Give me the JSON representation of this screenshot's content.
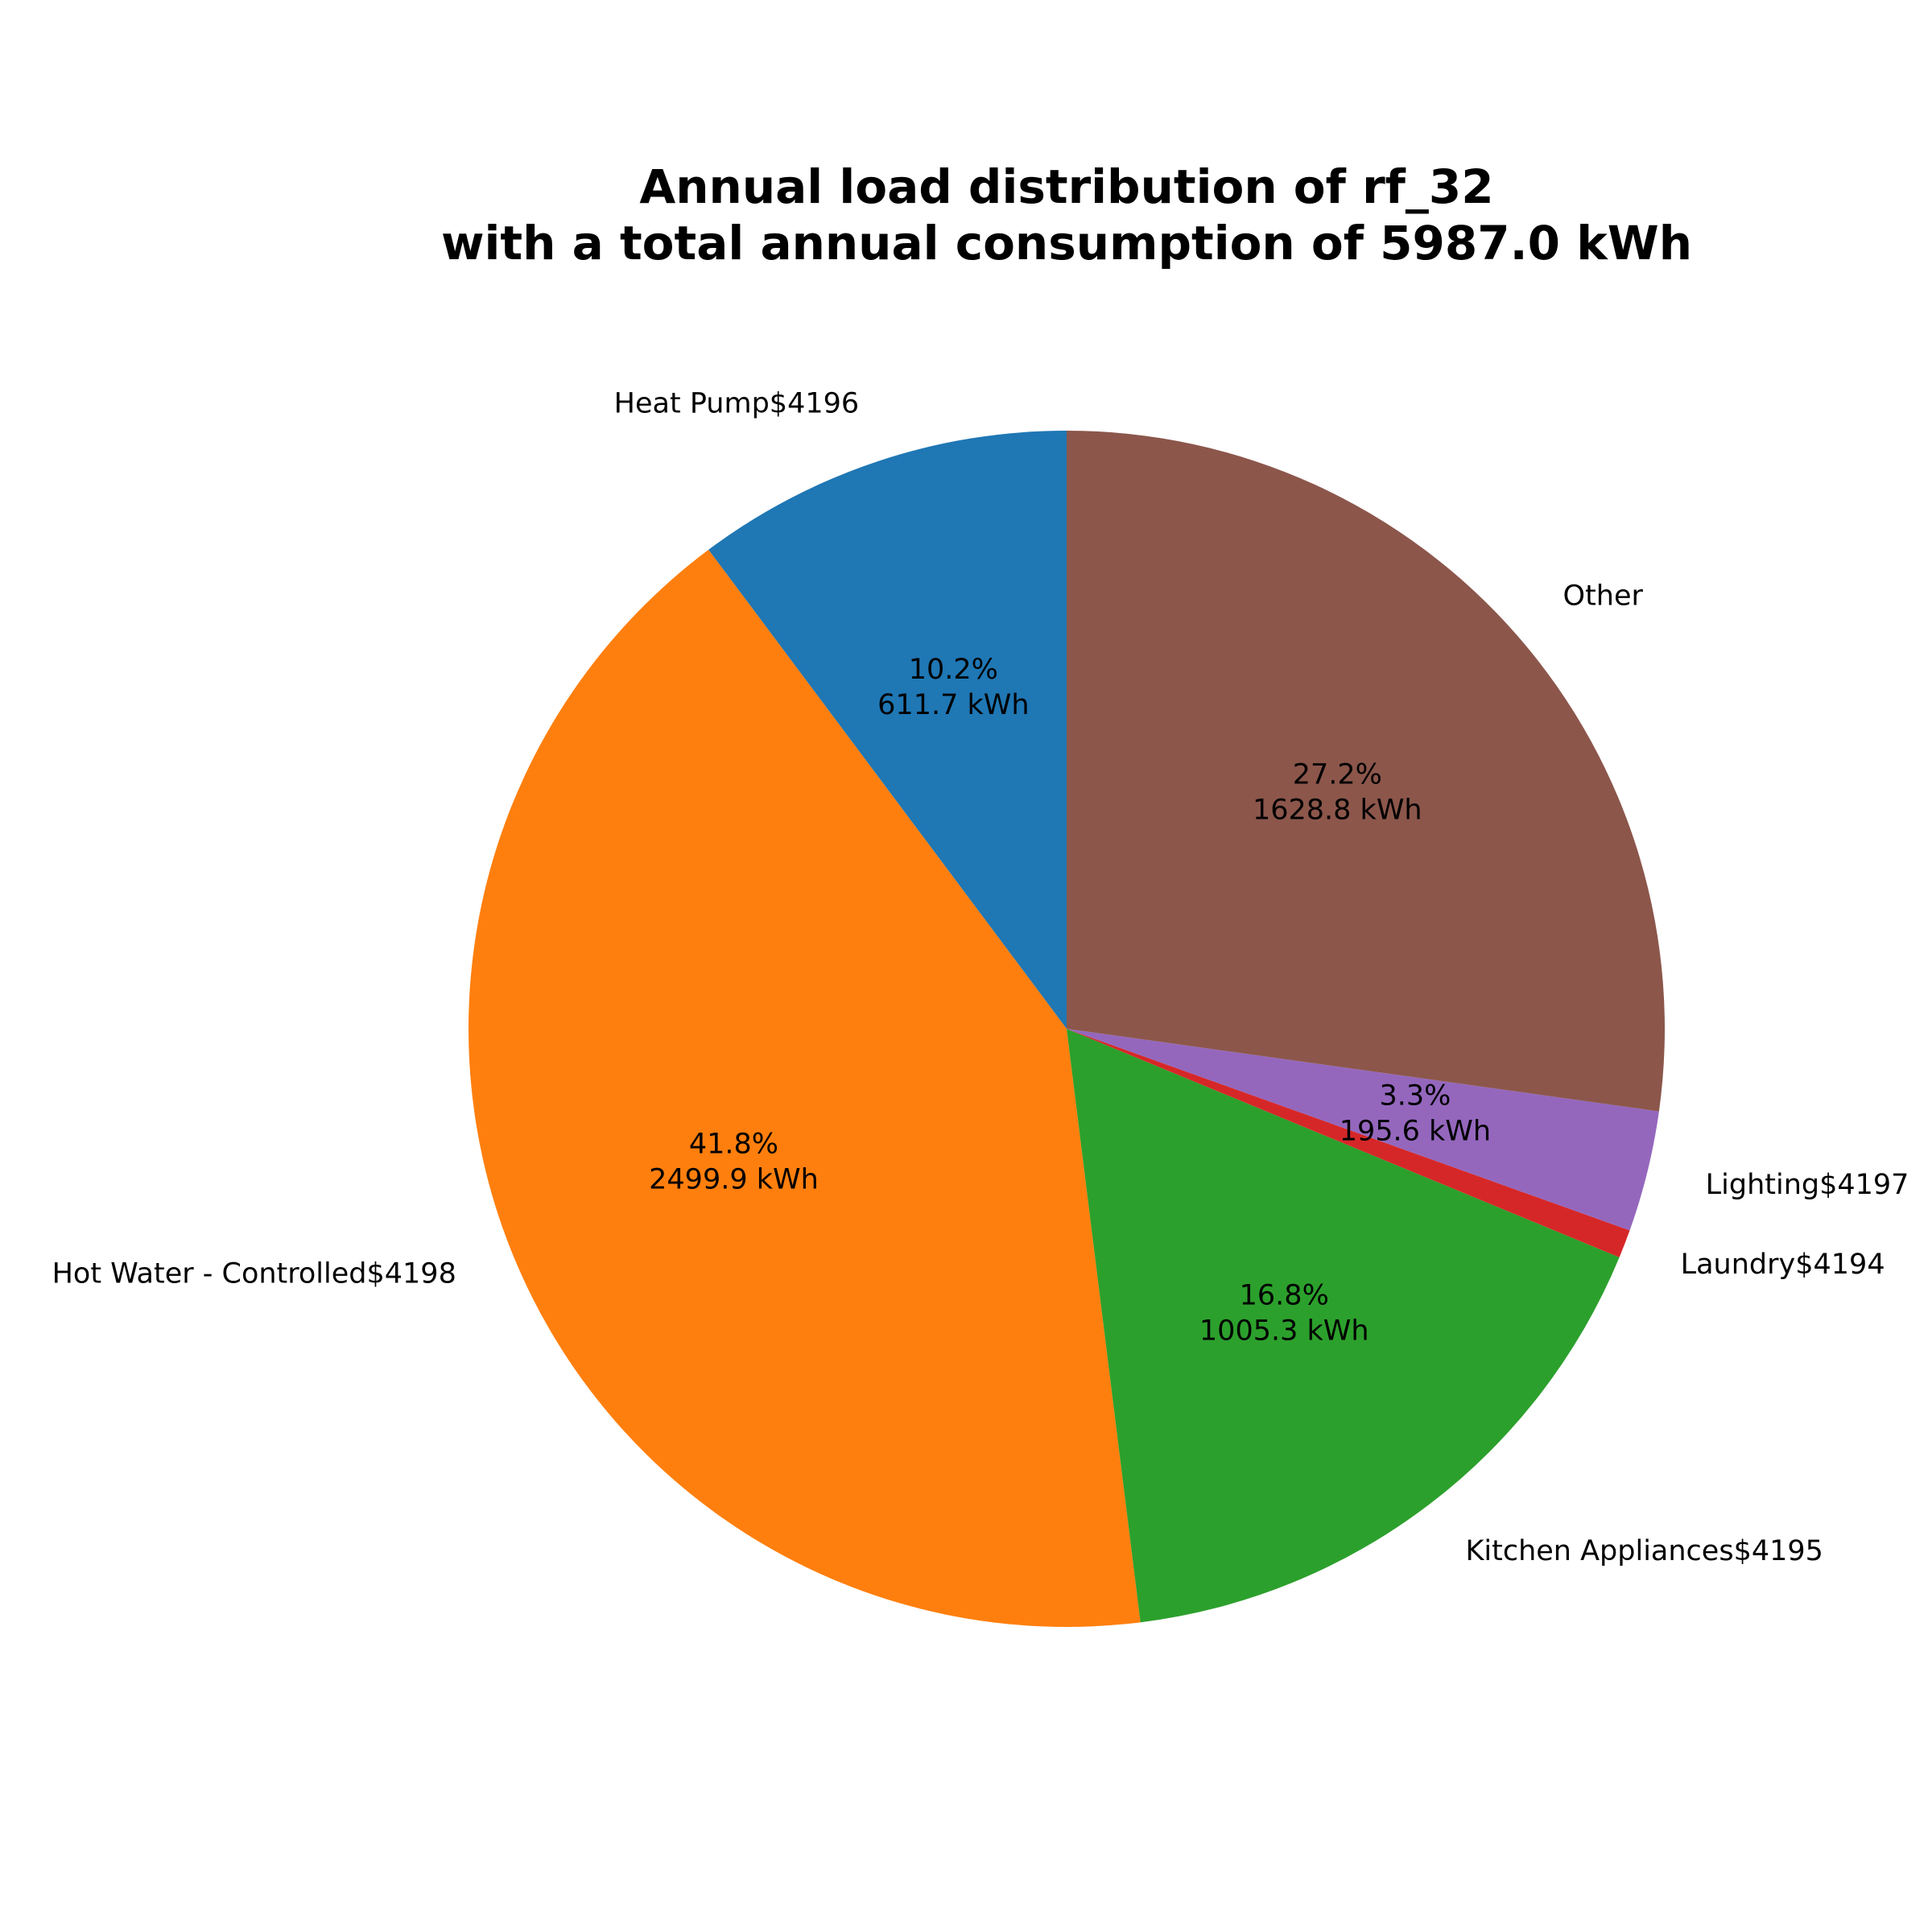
{
  "chart_data": {
    "type": "pie",
    "title_lines": [
      "Annual load distribution of rf_32",
      "with a total annual consumption of 5987.0 kWh"
    ],
    "start_angle_deg": 90,
    "direction": "counterclockwise",
    "slices": [
      {
        "label": "Heat Pump$4196",
        "value": 611.7,
        "percent_text": "10.2%",
        "value_text": "611.7 kWh",
        "color": "#1f77b4"
      },
      {
        "label": "Hot Water - Controlled$4198",
        "value": 2499.9,
        "percent_text": "41.8%",
        "value_text": "2499.9 kWh",
        "color": "#ff7f0e"
      },
      {
        "label": "Kitchen Appliances$4195",
        "value": 1005.3,
        "percent_text": "16.8%",
        "value_text": "1005.3 kWh",
        "color": "#2ca02c"
      },
      {
        "label": "Laundry$4194",
        "value": 46.0,
        "percent_text": "",
        "value_text": "",
        "color": "#d62728"
      },
      {
        "label": "Lighting$4197",
        "value": 195.6,
        "percent_text": "3.3%",
        "value_text": "195.6 kWh",
        "color": "#9467bd"
      },
      {
        "label": "Other",
        "value": 1628.8,
        "percent_text": "27.2%",
        "value_text": "1628.8 kWh",
        "color": "#8c564b"
      }
    ]
  }
}
